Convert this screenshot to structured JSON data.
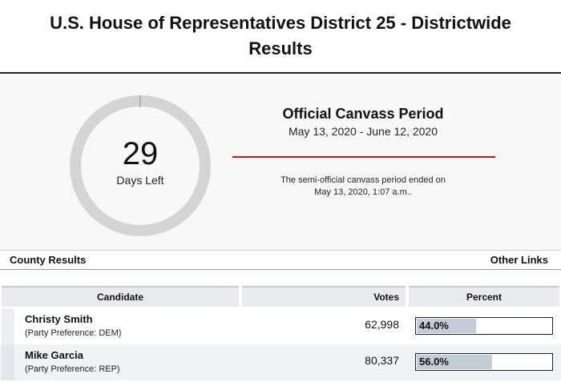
{
  "header": {
    "title": "U.S. House of Representatives District 25 - Districtwide Results"
  },
  "countdown": {
    "days": "29",
    "days_label": "Days Left",
    "progress": 0.0,
    "ring_color": "#d4d4d4",
    "marker_color": "#9aa7b4"
  },
  "canvass": {
    "title": "Official Canvass Period",
    "dates": "May 13, 2020 - June 12, 2020",
    "note": "The semi-official canvass period ended on May 13, 2020, 1:07 a.m..",
    "rule_color": "#b71c1c"
  },
  "links": {
    "county_results": "County Results",
    "other_links": "Other Links"
  },
  "results": {
    "columns": {
      "candidate": "Candidate",
      "votes": "Votes",
      "percent": "Percent"
    },
    "rows": [
      {
        "name": "Christy Smith",
        "party": "(Party Preference: DEM)",
        "votes": "62,998",
        "percent_label": "44.0%",
        "percent": 44.0
      },
      {
        "name": "Mike Garcia",
        "party": "(Party Preference: REP)",
        "votes": "80,337",
        "percent_label": "56.0%",
        "percent": 56.0
      }
    ]
  }
}
